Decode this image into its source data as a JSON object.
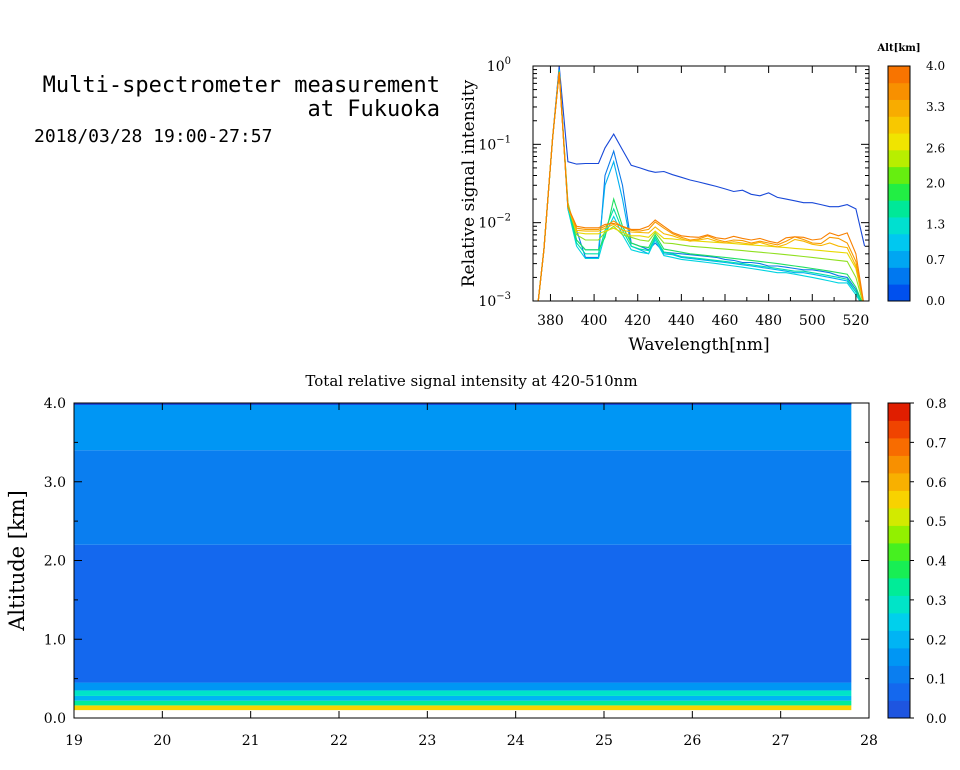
{
  "header": {
    "title_line1": "Multi-spectrometer measurement",
    "title_line2": "at Fukuoka",
    "date_range": "2018/03/28 19:00-27:57"
  },
  "chart_data": [
    {
      "type": "line",
      "xlabel": "Wavelength[nm]",
      "ylabel": "Relative signal intensity",
      "xlim": [
        372,
        526
      ],
      "ylim": [
        0.001,
        1
      ],
      "yscale": "log",
      "xticks": [
        380,
        400,
        420,
        440,
        460,
        480,
        500,
        520
      ],
      "yticks": [
        {
          "value": 0.001,
          "base": "10",
          "exp": "−3"
        },
        {
          "value": 0.01,
          "base": "10",
          "exp": "−2"
        },
        {
          "value": 0.1,
          "base": "10",
          "exp": "−1"
        },
        {
          "value": 1,
          "base": "10",
          "exp": "0"
        }
      ],
      "colorbar": {
        "title": "Alt[km]",
        "min": 0.0,
        "max": 4.0,
        "ticks": [
          "0.0",
          "0.7",
          "1.3",
          "2.0",
          "2.6",
          "3.3",
          "4.0"
        ],
        "colors": [
          "#0050ee",
          "#0078f0",
          "#00a6f2",
          "#00c8f0",
          "#00e0d0",
          "#00e898",
          "#22ee44",
          "#66ee10",
          "#b8ee00",
          "#f0e400",
          "#f8c800",
          "#f8ac00",
          "#f89000",
          "#f87400"
        ]
      },
      "x": [
        374,
        377,
        381,
        384,
        388,
        392,
        396,
        402,
        405,
        409,
        413,
        417,
        421,
        425,
        428,
        432,
        436,
        440,
        444,
        448,
        452,
        456,
        460,
        464,
        468,
        472,
        476,
        480,
        484,
        488,
        492,
        496,
        500,
        504,
        508,
        512,
        516,
        520,
        524
      ],
      "series": [
        {
          "color": "#1848d8",
          "values": [
            0.0008,
            0.0045,
            0.12,
            1.0,
            0.06,
            0.056,
            0.057,
            0.057,
            0.09,
            0.135,
            0.085,
            0.054,
            0.05,
            0.046,
            0.044,
            0.045,
            0.041,
            0.038,
            0.035,
            0.033,
            0.031,
            0.029,
            0.027,
            0.025,
            0.026,
            0.023,
            0.022,
            0.024,
            0.021,
            0.02,
            0.019,
            0.018,
            0.018,
            0.017,
            0.016,
            0.016,
            0.017,
            0.015,
            0.005
          ]
        },
        {
          "color": "#0a78e8",
          "values": [
            0.0008,
            0.0045,
            0.12,
            0.92,
            0.016,
            0.008,
            0.0036,
            0.0036,
            0.04,
            0.082,
            0.03,
            0.0055,
            0.005,
            0.0045,
            0.0055,
            0.0042,
            0.0041,
            0.004,
            0.0039,
            0.0038,
            0.0037,
            0.0036,
            0.0034,
            0.0033,
            0.0031,
            0.0031,
            0.003,
            0.0028,
            0.0028,
            0.0027,
            0.0026,
            0.0025,
            0.0025,
            0.0024,
            0.0023,
            0.0021,
            0.002,
            0.0014,
            0.0008
          ]
        },
        {
          "color": "#00b0f0",
          "values": [
            0.0008,
            0.0045,
            0.12,
            0.9,
            0.015,
            0.006,
            0.0045,
            0.0045,
            0.03,
            0.06,
            0.02,
            0.005,
            0.0045,
            0.004,
            0.0065,
            0.004,
            0.0039,
            0.0036,
            0.0035,
            0.0034,
            0.0033,
            0.0032,
            0.0031,
            0.003,
            0.0029,
            0.0028,
            0.0027,
            0.0026,
            0.0025,
            0.0024,
            0.0023,
            0.0023,
            0.0022,
            0.0021,
            0.002,
            0.0019,
            0.0018,
            0.0013,
            0.0008
          ]
        },
        {
          "color": "#00d4e0",
          "values": [
            0.0008,
            0.0045,
            0.12,
            0.88,
            0.015,
            0.005,
            0.0035,
            0.0035,
            0.007,
            0.012,
            0.007,
            0.0045,
            0.0042,
            0.004,
            0.006,
            0.0038,
            0.0036,
            0.0034,
            0.0033,
            0.0032,
            0.0031,
            0.003,
            0.0029,
            0.0028,
            0.0027,
            0.0026,
            0.0025,
            0.0024,
            0.0023,
            0.0023,
            0.0022,
            0.0021,
            0.002,
            0.0019,
            0.0018,
            0.0017,
            0.0017,
            0.0012,
            0.0008
          ]
        },
        {
          "color": "#00e0a8",
          "values": [
            0.0008,
            0.0045,
            0.12,
            0.86,
            0.016,
            0.0055,
            0.004,
            0.004,
            0.008,
            0.015,
            0.008,
            0.005,
            0.0046,
            0.0044,
            0.0065,
            0.0042,
            0.004,
            0.0037,
            0.0036,
            0.0035,
            0.0034,
            0.0033,
            0.0032,
            0.0031,
            0.003,
            0.0029,
            0.0028,
            0.0027,
            0.0026,
            0.0025,
            0.0024,
            0.0024,
            0.0023,
            0.0022,
            0.0021,
            0.002,
            0.0019,
            0.0013,
            0.0008
          ]
        },
        {
          "color": "#20e060",
          "values": [
            0.0008,
            0.0045,
            0.12,
            0.85,
            0.018,
            0.006,
            0.0045,
            0.0045,
            0.0065,
            0.02,
            0.009,
            0.0055,
            0.005,
            0.0048,
            0.007,
            0.0046,
            0.0044,
            0.0042,
            0.004,
            0.0039,
            0.0038,
            0.0037,
            0.0036,
            0.0035,
            0.0034,
            0.0033,
            0.0032,
            0.0031,
            0.003,
            0.0029,
            0.0028,
            0.0027,
            0.0026,
            0.0025,
            0.0024,
            0.0023,
            0.0022,
            0.0015,
            0.0008
          ]
        },
        {
          "color": "#90e020",
          "values": [
            0.0008,
            0.0045,
            0.12,
            0.84,
            0.018,
            0.007,
            0.006,
            0.006,
            0.0075,
            0.009,
            0.007,
            0.0065,
            0.006,
            0.0058,
            0.0075,
            0.0055,
            0.0054,
            0.0052,
            0.005,
            0.0049,
            0.0048,
            0.0047,
            0.0046,
            0.0045,
            0.0044,
            0.0043,
            0.0042,
            0.0041,
            0.004,
            0.0039,
            0.0038,
            0.0037,
            0.0036,
            0.0035,
            0.0034,
            0.0033,
            0.0032,
            0.002,
            0.0008
          ]
        },
        {
          "color": "#e8d800",
          "values": [
            0.0008,
            0.0045,
            0.12,
            0.84,
            0.016,
            0.0075,
            0.0072,
            0.0072,
            0.0078,
            0.0085,
            0.0075,
            0.0068,
            0.0068,
            0.0065,
            0.0078,
            0.0063,
            0.0062,
            0.006,
            0.0059,
            0.0058,
            0.0057,
            0.0056,
            0.0055,
            0.0054,
            0.0053,
            0.0052,
            0.0051,
            0.005,
            0.0049,
            0.0048,
            0.0047,
            0.0046,
            0.0045,
            0.0044,
            0.0043,
            0.0042,
            0.0041,
            0.0026,
            0.0008
          ]
        },
        {
          "color": "#f8b800",
          "values": [
            0.0008,
            0.0045,
            0.12,
            0.83,
            0.016,
            0.008,
            0.0078,
            0.0078,
            0.0085,
            0.0095,
            0.008,
            0.0076,
            0.0075,
            0.0074,
            0.0088,
            0.0072,
            0.0068,
            0.0062,
            0.0058,
            0.006,
            0.0063,
            0.0058,
            0.0055,
            0.0057,
            0.0055,
            0.0053,
            0.0056,
            0.0052,
            0.0049,
            0.0053,
            0.0061,
            0.0058,
            0.0053,
            0.0051,
            0.0055,
            0.005,
            0.0048,
            0.0028,
            0.0008
          ]
        },
        {
          "color": "#f89a00",
          "values": [
            0.0008,
            0.0045,
            0.12,
            0.83,
            0.016,
            0.0085,
            0.0082,
            0.0082,
            0.009,
            0.0105,
            0.0088,
            0.008,
            0.0078,
            0.0082,
            0.0102,
            0.0085,
            0.0072,
            0.0065,
            0.006,
            0.0062,
            0.0068,
            0.0061,
            0.0057,
            0.006,
            0.0059,
            0.0055,
            0.0058,
            0.0055,
            0.0052,
            0.0058,
            0.0066,
            0.0061,
            0.0055,
            0.0054,
            0.0065,
            0.0063,
            0.0055,
            0.0032,
            0.0008
          ]
        },
        {
          "color": "#f88000",
          "values": [
            0.0008,
            0.0045,
            0.12,
            0.83,
            0.016,
            0.009,
            0.0086,
            0.0086,
            0.0095,
            0.0098,
            0.009,
            0.0082,
            0.0082,
            0.009,
            0.0108,
            0.009,
            0.0075,
            0.0068,
            0.0066,
            0.0065,
            0.007,
            0.0064,
            0.0062,
            0.0067,
            0.0063,
            0.006,
            0.0063,
            0.0058,
            0.0055,
            0.0064,
            0.0066,
            0.0065,
            0.006,
            0.0062,
            0.0074,
            0.0068,
            0.0074,
            0.004,
            0.0008
          ]
        }
      ]
    },
    {
      "type": "heatmap",
      "title": "Total relative signal intensity at 420-510nm",
      "xlabel": "",
      "ylabel": "Altitude [km]",
      "xlim": [
        19,
        28
      ],
      "ylim": [
        0.0,
        4.0
      ],
      "data_x_range": [
        19,
        27.8
      ],
      "xticks": [
        "19",
        "20",
        "21",
        "22",
        "23",
        "24",
        "25",
        "26",
        "27",
        "28"
      ],
      "yticks": [
        "0.0",
        "1.0",
        "2.0",
        "3.0",
        "4.0"
      ],
      "colorbar": {
        "min": 0.0,
        "max": 0.8,
        "ticks": [
          "0.0",
          "0.1",
          "0.2",
          "0.3",
          "0.4",
          "0.5",
          "0.6",
          "0.7",
          "0.8"
        ],
        "colors": [
          "#1e55e0",
          "#1468ee",
          "#0a7ef0",
          "#0096f4",
          "#00b4f4",
          "#00d0ec",
          "#00e4c8",
          "#00ec98",
          "#18ee54",
          "#46f020",
          "#92f000",
          "#d2ea00",
          "#f8d200",
          "#f8b000",
          "#f89000",
          "#f86c00",
          "#f04400",
          "#e01e00"
        ]
      },
      "layers": [
        {
          "alt_range": [
            0.1,
            0.16
          ],
          "value": 0.55
        },
        {
          "alt_range": [
            0.16,
            0.22
          ],
          "value": 0.34
        },
        {
          "alt_range": [
            0.22,
            0.28
          ],
          "value": 0.2
        },
        {
          "alt_range": [
            0.28,
            0.35
          ],
          "value": 0.3
        },
        {
          "alt_range": [
            0.35,
            0.45
          ],
          "value": 0.17
        },
        {
          "alt_range": [
            0.45,
            2.2
          ],
          "value": 0.05
        },
        {
          "alt_range": [
            2.2,
            3.4
          ],
          "value": 0.12
        },
        {
          "alt_range": [
            3.4,
            4.0
          ],
          "value": 0.17
        }
      ]
    }
  ]
}
